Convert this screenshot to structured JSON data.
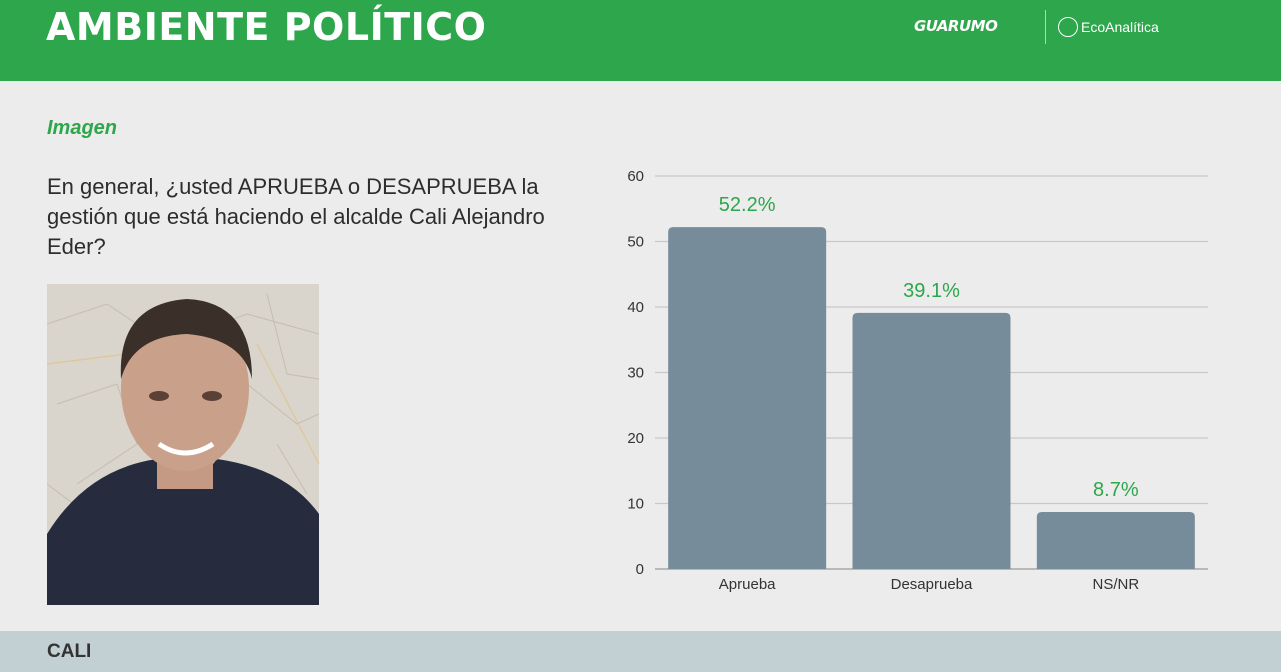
{
  "header": {
    "title": "AMBIENTE POLÍTICO",
    "logo_primary": "GUARUMO",
    "logo_secondary": "EcoAnalítica"
  },
  "section": {
    "label": "Imagen",
    "question": "En general, ¿usted APRUEBA o DESAPRUEBA la gestión que está haciendo el alcalde Cali Alejandro Eder?"
  },
  "footer": {
    "city": "CALI"
  },
  "colors": {
    "brand_green": "#2ea64c",
    "bar": "#778c9a",
    "footer_bg": "#c2d0d3"
  },
  "chart_data": {
    "type": "bar",
    "categories": [
      "Aprueba",
      "Desaprueba",
      "NS/NR"
    ],
    "values": [
      52.2,
      39.1,
      8.7
    ],
    "data_labels": [
      "52.2%",
      "39.1%",
      "8.7%"
    ],
    "ylim": [
      0,
      60
    ],
    "yticks": [
      0,
      10,
      20,
      30,
      40,
      50,
      60
    ],
    "grid": true,
    "title": "",
    "xlabel": "",
    "ylabel": ""
  }
}
